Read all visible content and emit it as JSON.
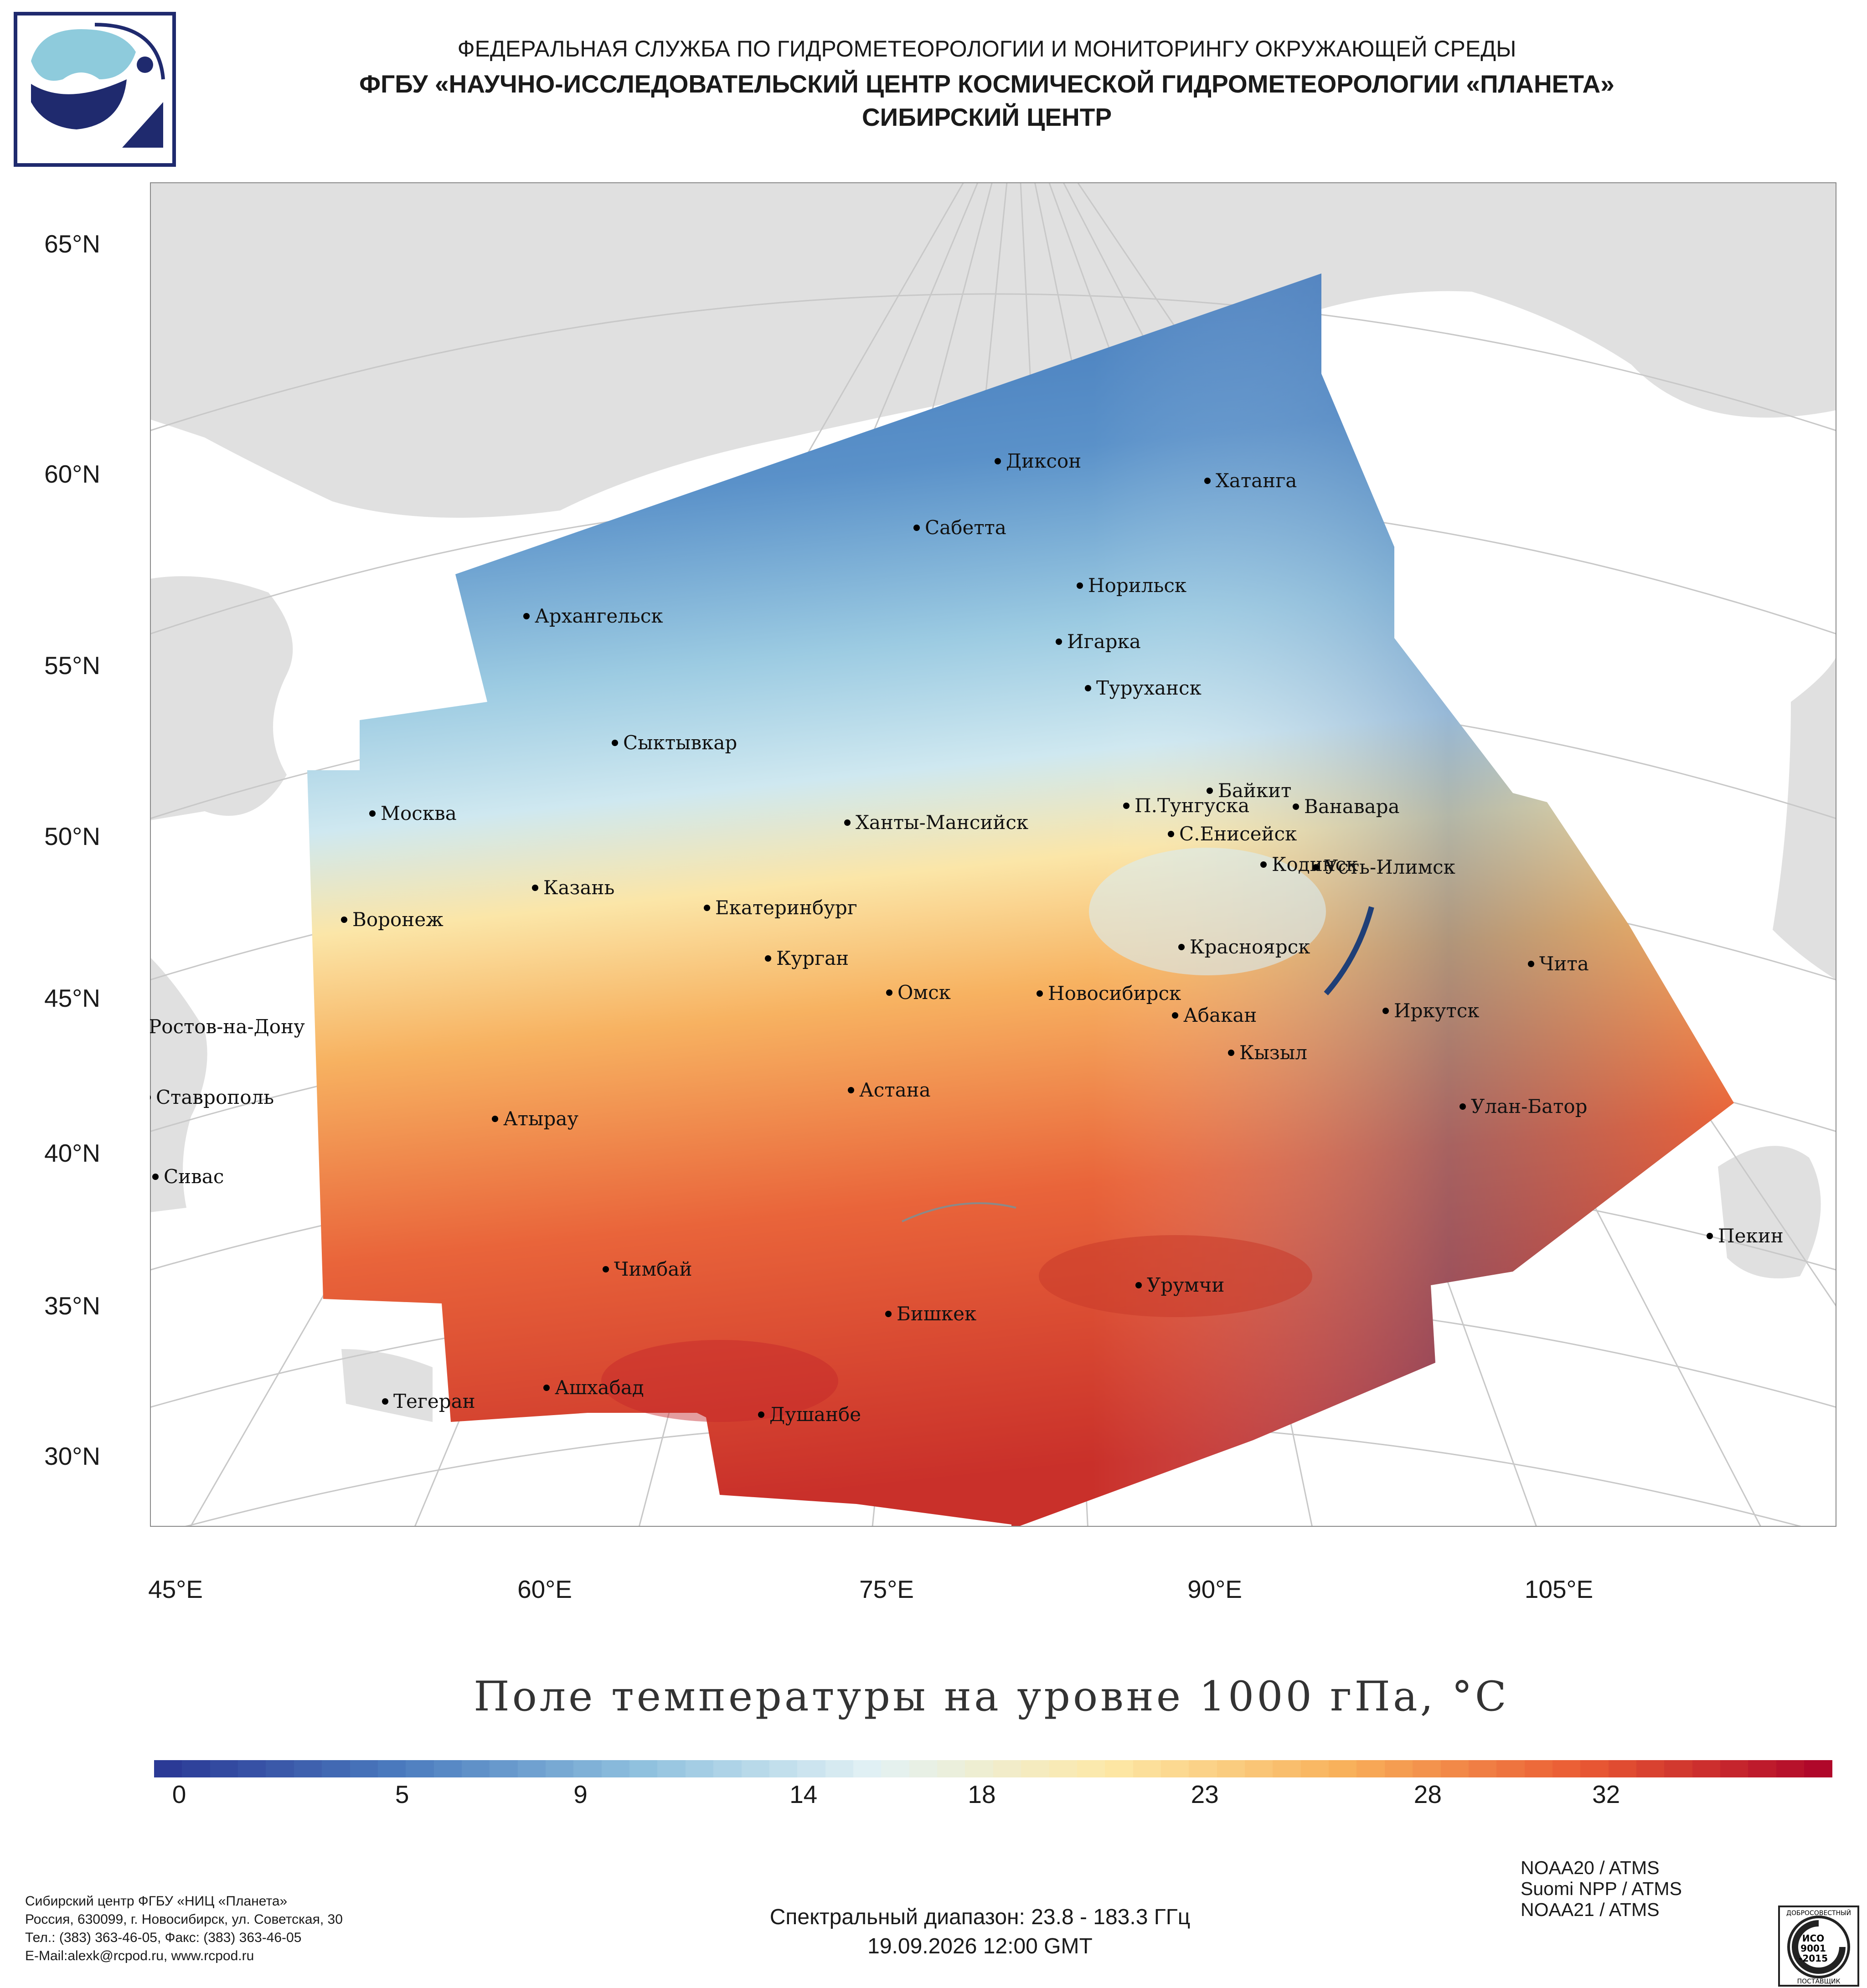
{
  "header": {
    "line1": "ФЕДЕРАЛЬНАЯ СЛУЖБА ПО ГИДРОМЕТЕОРОЛОГИИ И МОНИТОРИНГУ ОКРУЖАЮЩЕЙ СРЕДЫ",
    "line2": "ФГБУ «НАУЧНО-ИССЛЕДОВАТЕЛЬСКИЙ ЦЕНТР КОСМИЧЕСКОЙ ГИДРОМЕТЕОРОЛОГИИ «ПЛАНЕТА»",
    "line3": "СИБИРСКИЙ ЦЕНТР"
  },
  "map": {
    "lat_labels": [
      "65°N",
      "60°N",
      "55°N",
      "50°N",
      "45°N",
      "40°N",
      "35°N",
      "30°N"
    ],
    "lon_labels": [
      "45°E",
      "60°E",
      "75°E",
      "90°E",
      "105°E"
    ],
    "cities": [
      "Диксон",
      "Хатанга",
      "Сабетта",
      "Норильск",
      "Архангельск",
      "Игарка",
      "Туруханск",
      "Сыктывкар",
      "Байкит",
      "Москва",
      "П.Тунгуска",
      "Ванавара",
      "Ханты-Мансийск",
      "С.Енисейск",
      "Кодинск",
      "Усть-Илимск",
      "Казань",
      "Екатеринбург",
      "Воронеж",
      "Красноярск",
      "Курган",
      "Чита",
      "Омск",
      "Новосибирск",
      "Иркутск",
      "Абакан",
      "Ростов-на-Дону",
      "Кызыл",
      "Астана",
      "Ставрополь",
      "Улан-Батор",
      "Атырау",
      "Сивас",
      "Пекин",
      "Чимбай",
      "Урумчи",
      "Бишкек",
      "Ашхабад",
      "Тегеран",
      "Душанбе"
    ]
  },
  "title": "Поле температуры на уровне 1000 гПа, °C",
  "colorbar": {
    "ticks": [
      {
        "label": "0",
        "value": 0
      },
      {
        "label": "5",
        "value": 5
      },
      {
        "label": "9",
        "value": 9
      },
      {
        "label": "14",
        "value": 14
      },
      {
        "label": "18",
        "value": 18
      },
      {
        "label": "23",
        "value": 23
      },
      {
        "label": "28",
        "value": 28
      },
      {
        "label": "32",
        "value": 32
      }
    ],
    "range": [
      0,
      36
    ],
    "colors": [
      "#2b3a96",
      "#4c7cbf",
      "#8fc0de",
      "#e3f2f5",
      "#fde8a6",
      "#f8b05a",
      "#ea5a33",
      "#b0082a"
    ]
  },
  "footer": {
    "address_lines": [
      "Сибирский центр ФГБУ «НИЦ «Планета»",
      "Россия, 630099, г. Новосибирск, ул. Советская, 30",
      "Тел.: (383) 363-46-05, Факс: (383) 363-46-05",
      "E-Mail:alexk@rcpod.ru, www.rcpod.ru"
    ],
    "spectral": "Спектральный диапазон: 23.8 - 183.3 ГГц",
    "datetime": "19.09.2026 12:00 GMT",
    "satellites": [
      "NOAA20 / ATMS",
      "Suomi NPP / ATMS",
      "NOAA21 / ATMS"
    ],
    "iso_top": "ДОБРОСОВЕСТНЫЙ",
    "iso_l1": "ИСО",
    "iso_l2": "9001",
    "iso_l3": "-2015",
    "iso_bottom": "ПОСТАВЩИК"
  },
  "style": {
    "land_color": "#e0e0e0",
    "sea_color": "#ffffff",
    "grid_color": "#c8c8c8"
  }
}
